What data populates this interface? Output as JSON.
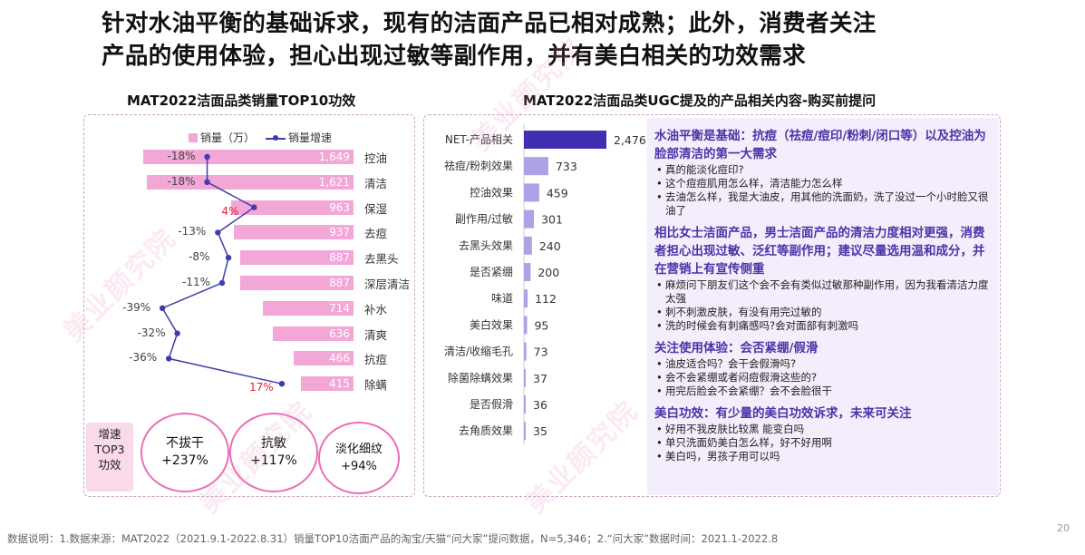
{
  "headline": {
    "line1": "针对水油平衡的基础诉求，现有的洁面产品已相对成熟；此外，消费者关注",
    "line2": "产品的使用体验，担心出现过敏等副作用，并有美白相关的功效需求"
  },
  "left_panel": {
    "title": "MAT2022洁面品类销量TOP10功效",
    "legend_volume": "销量（万）",
    "legend_growth": "销量增速",
    "top3_label_l1": "增速",
    "top3_label_l2": "TOP3",
    "top3_label_l3": "功效",
    "top3": [
      {
        "name": "不拔干",
        "value": "+237%"
      },
      {
        "name": "抗敏",
        "value": "+117%"
      },
      {
        "name": "淡化细纹",
        "value": "+94%"
      }
    ]
  },
  "right_panel": {
    "title": "MAT2022洁面品类UGC提及的产品相关内容-购买前提问",
    "sections": [
      {
        "heading": "水油平衡是基础：抗痘（祛痘/痘印/粉刺/闭口等）以及控油为脸部清洁的第一大需求",
        "bullets": [
          "真的能淡化痘印?",
          "这个痘痘肌用怎么样，清洁能力怎么样",
          "去油怎么样，我是大油皮，用其他的洗面奶，洗了没过一个小时脸又很油了"
        ]
      },
      {
        "heading": "相比女士洁面产品，男士洁面产品的清洁力度相对更强，消费者担心出现过敏、泛红等副作用；建议尽量选用温和成分，并在营销上有宣传侧重",
        "bullets": [
          "麻烦问下朋友们这个会不会有类似过敏那种副作用，因为我看清洁力度太强",
          "刺不刺激皮肤，有没有用完过敏的",
          "洗的时候会有刺痛感吗?会对面部有刺激吗"
        ]
      },
      {
        "heading": "关注使用体验：会否紧绷/假滑",
        "bullets": [
          "油皮适合吗？会干会假滑吗?",
          "会不会紧绷或者闷痘假滑这些的?",
          "用完后脸会不会紧绷？会不会脸很干"
        ]
      },
      {
        "heading": "美白功效：有少量的美白功效诉求，未来可关注",
        "bullets": [
          "好用不我皮肤比较黑 能变白吗",
          "单只洗面奶美白怎么样，好不好用啊",
          "美白吗，男孩子用可以吗"
        ]
      }
    ]
  },
  "footer": "数据说明：1.数据来源：MAT2022（2021.9.1-2022.8.31）销量TOP10洁面产品的淘宝/天猫“问大家”提问数据，N=5,346；2.“问大家”数据时间：2021.1-2022.8",
  "page_number": "20",
  "watermark": "美业颜究院",
  "chart_data": [
    {
      "type": "bar",
      "orientation": "horizontal",
      "title": "MAT2022洁面品类销量TOP10功效",
      "categories": [
        "控油",
        "清洁",
        "保湿",
        "去痘",
        "去黑头",
        "深层清洁",
        "补水",
        "清爽",
        "抗痘",
        "除螨"
      ],
      "series": [
        {
          "name": "销量（万）",
          "values": [
            1649,
            1621,
            963,
            937,
            887,
            887,
            714,
            636,
            466,
            415
          ],
          "labels": [
            "1,649",
            "1,621",
            "963",
            "937",
            "887",
            "887",
            "714",
            "636",
            "466",
            "415"
          ],
          "color": "#f2a7d6"
        },
        {
          "name": "销量增速",
          "values": [
            -18,
            -18,
            4,
            -13,
            -8,
            -11,
            -39,
            -32,
            -36,
            17
          ],
          "labels": [
            "-18%",
            "-18%",
            "4%",
            "-13%",
            "-8%",
            "-11%",
            "-39%",
            "-32%",
            "-36%",
            "17%"
          ],
          "color": "#3d3db0",
          "positive_label_color": "#e0223a"
        }
      ],
      "xlim": [
        0,
        1649
      ],
      "growth_range": [
        -45,
        20
      ],
      "legend": "top"
    },
    {
      "type": "bar",
      "orientation": "horizontal",
      "title": "MAT2022洁面品类UGC提及的产品相关内容-购买前提问",
      "categories": [
        "NET-产品相关",
        "祛痘/粉刺效果",
        "控油效果",
        "副作用/过敏",
        "去黑头效果",
        "是否紧绷",
        "味道",
        "美白效果",
        "清洁/收缩毛孔",
        "除菌除螨效果",
        "是否假滑",
        "去角质效果"
      ],
      "values": [
        2476,
        733,
        459,
        301,
        240,
        200,
        112,
        95,
        73,
        37,
        36,
        35
      ],
      "labels": [
        "2,476",
        "733",
        "459",
        "301",
        "240",
        "200",
        "112",
        "95",
        "73",
        "37",
        "36",
        "35"
      ],
      "colors": {
        "net": "#3d2fb0",
        "other": "#aca3e6"
      },
      "xlim": [
        0,
        2476
      ]
    }
  ]
}
